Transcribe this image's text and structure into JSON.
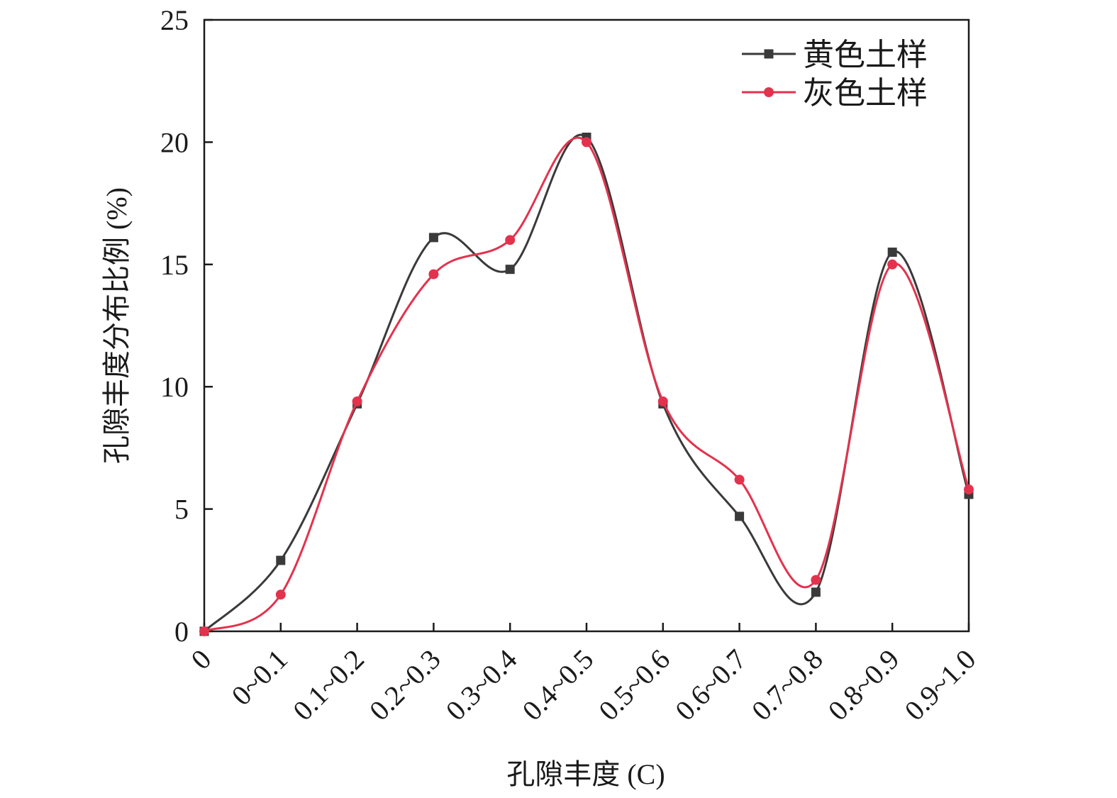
{
  "chart_data": {
    "type": "line",
    "categories": [
      "0",
      "0~0.1",
      "0.1~0.2",
      "0.2~0.3",
      "0.3~0.4",
      "0.4~0.5",
      "0.5~0.6",
      "0.6~0.7",
      "0.7~0.8",
      "0.8~0.9",
      "0.9~1.0"
    ],
    "series": [
      {
        "name": "黄色土样",
        "color": "#3a3a3a",
        "marker": "square",
        "values": [
          0,
          2.9,
          9.3,
          16.1,
          14.8,
          20.2,
          9.3,
          4.7,
          1.6,
          15.5,
          5.6
        ]
      },
      {
        "name": "灰色土样",
        "color": "#e3324d",
        "marker": "circle",
        "values": [
          0,
          1.5,
          9.4,
          14.6,
          16.0,
          20.0,
          9.4,
          6.2,
          2.1,
          15.0,
          5.8
        ]
      }
    ],
    "xlabel": "孔隙丰度 (C)",
    "ylabel": "孔隙丰度分布比例 (%)",
    "ylim": [
      0,
      25
    ],
    "yticks": [
      0,
      5,
      10,
      15,
      20,
      25
    ],
    "grid": false,
    "legend_position": "top-right"
  }
}
